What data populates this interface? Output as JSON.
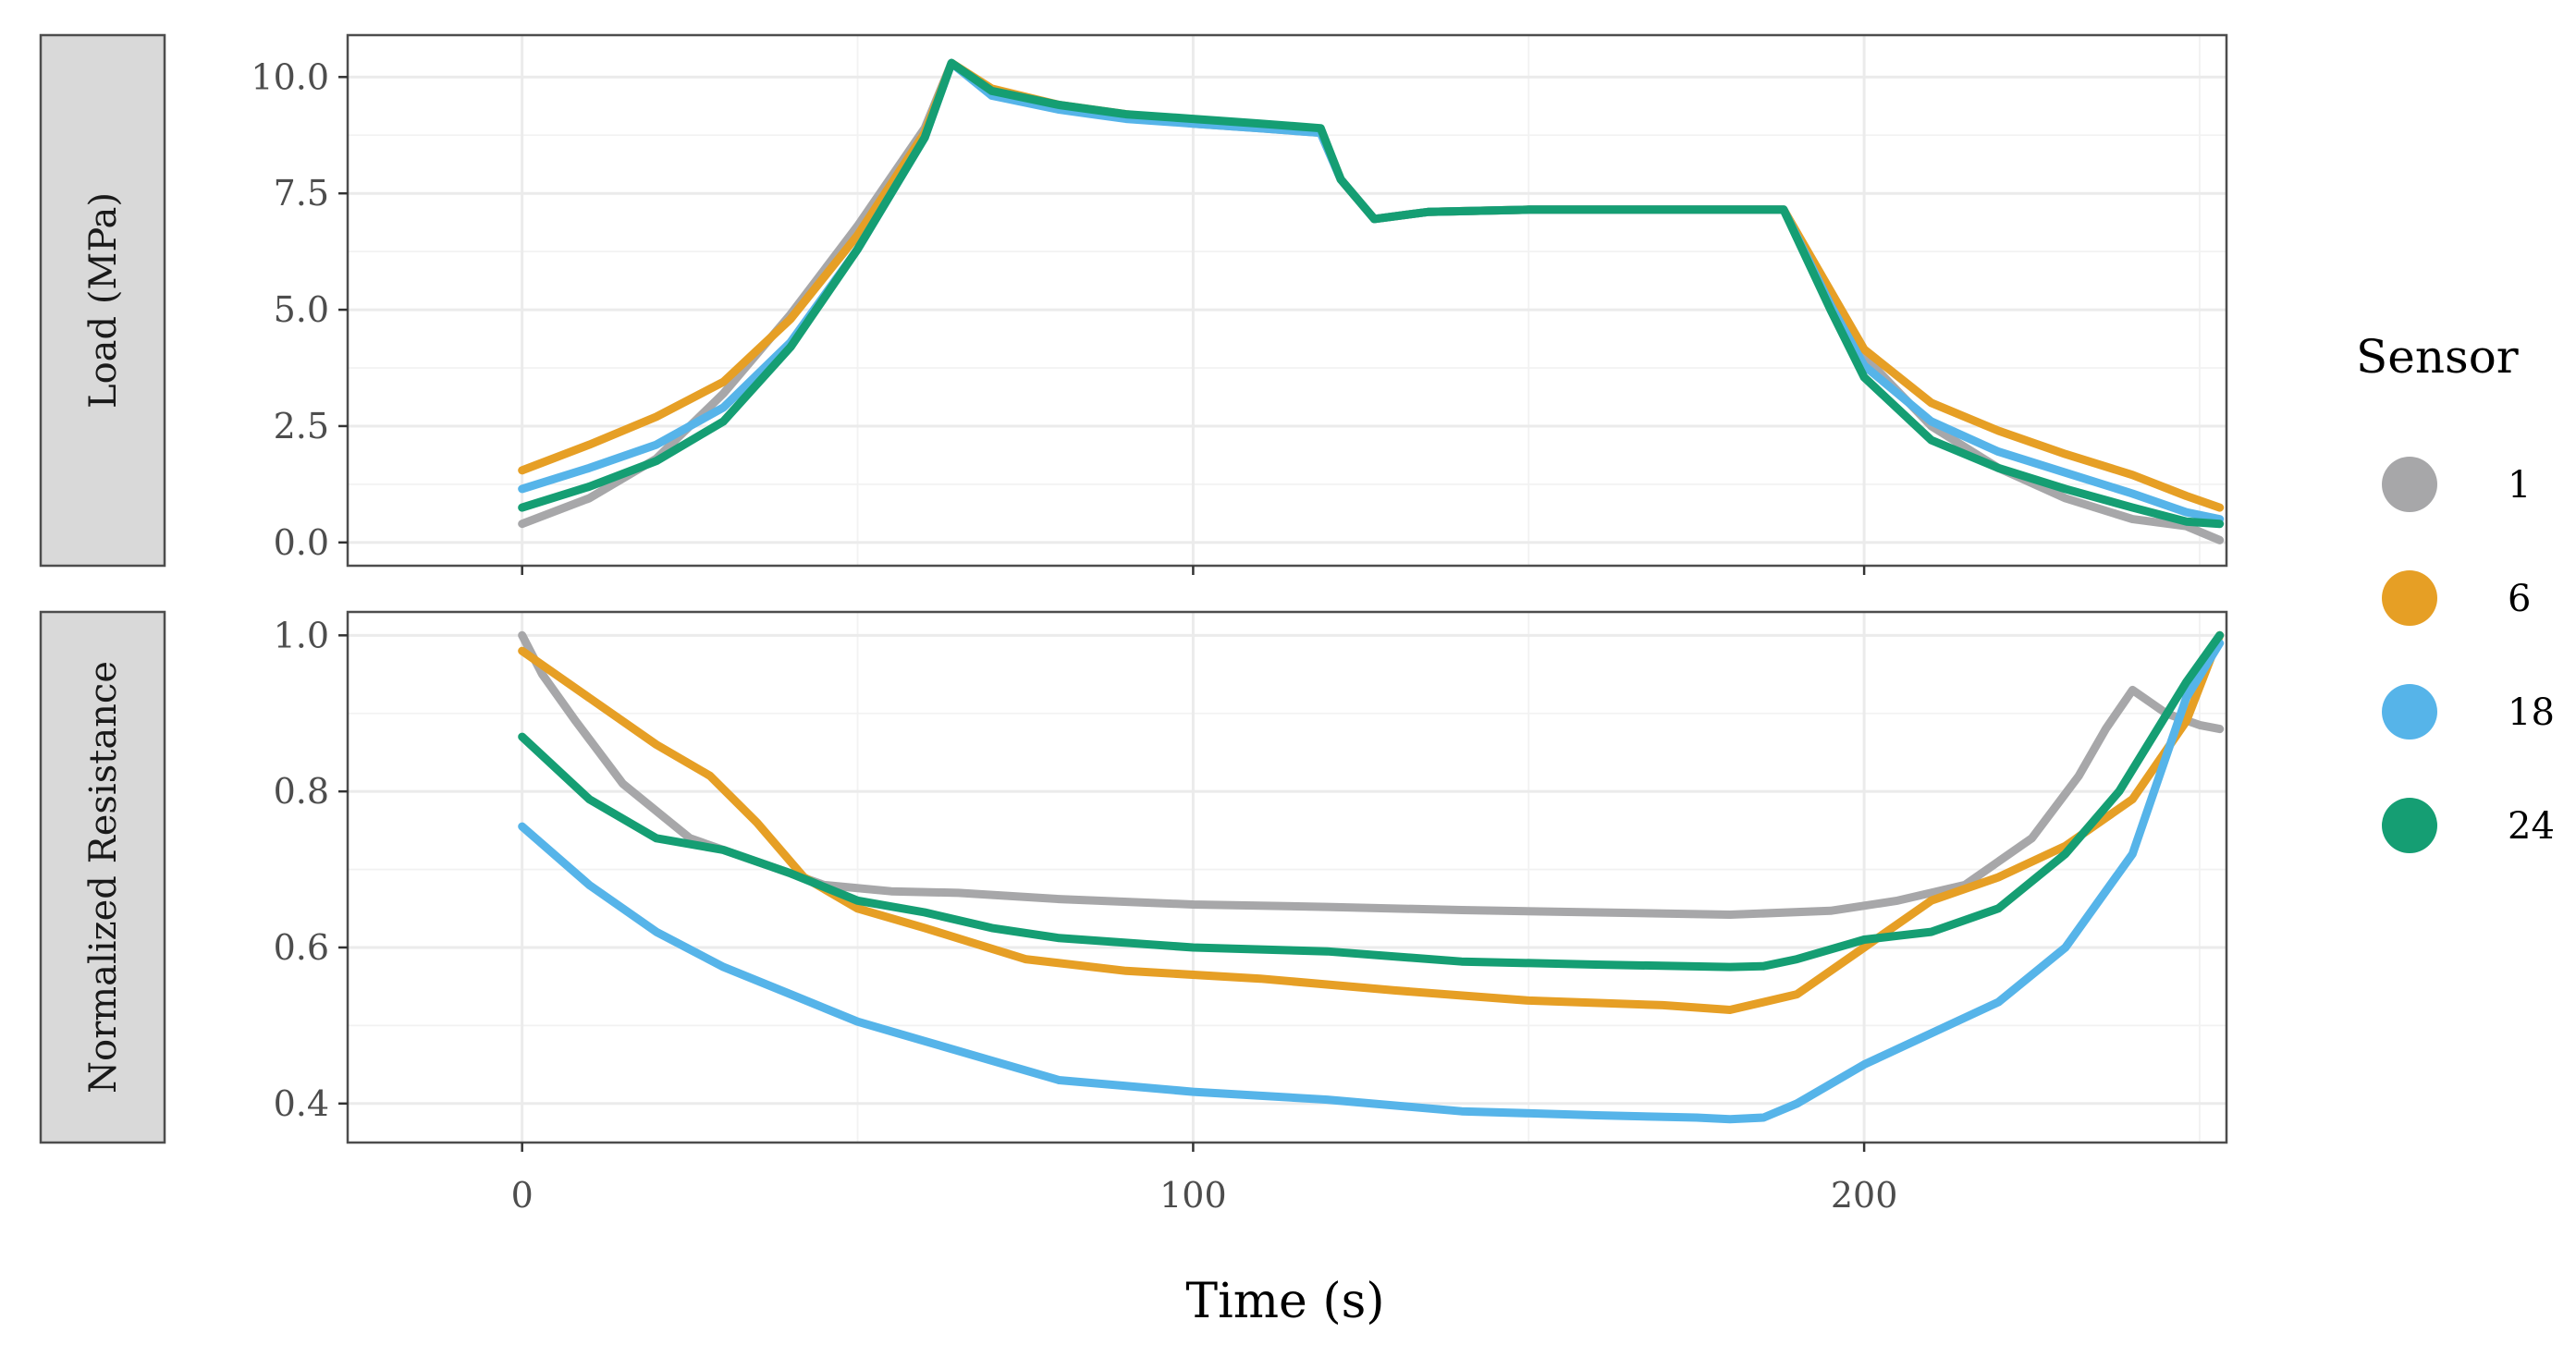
{
  "chart_data": {
    "type": "line",
    "xlabel": "Time (s)",
    "xlim": [
      -26,
      254
    ],
    "x_ticks": [
      0,
      100,
      200
    ],
    "x_tick_labels": [
      "0",
      "100",
      "200"
    ],
    "x_minor_ticks": [
      50,
      150,
      250
    ],
    "legend": {
      "title": "Sensor",
      "placement": "right",
      "entries": [
        {
          "name": "1",
          "color": "#a7a7a9"
        },
        {
          "name": "6",
          "color": "#e69f25"
        },
        {
          "name": "18",
          "color": "#56b4e9"
        },
        {
          "name": "24",
          "color": "#159e73"
        }
      ]
    },
    "panels": [
      {
        "strip_label": "Load (MPa)",
        "ylim": [
          -0.5,
          10.9
        ],
        "y_ticks": [
          0.0,
          2.5,
          5.0,
          7.5,
          10.0
        ],
        "y_tick_labels": [
          "0.0",
          "2.5",
          "5.0",
          "7.5",
          "10.0"
        ],
        "y_minor_ticks": [
          1.25,
          3.75,
          6.25,
          8.75
        ],
        "series": [
          {
            "name": "1",
            "x": [
              0,
              10,
              20,
              30,
              40,
              50,
              60,
              64,
              70,
              80,
              90,
              100,
              110,
              119,
              122,
              127,
              135,
              150,
              170,
              188,
              195,
              200,
              210,
              220,
              230,
              240,
              248,
              253
            ],
            "y": [
              0.4,
              0.95,
              1.8,
              3.2,
              4.9,
              6.8,
              8.9,
              10.3,
              9.7,
              9.35,
              9.15,
              9.0,
              8.9,
              8.8,
              7.8,
              6.95,
              7.1,
              7.15,
              7.15,
              7.15,
              5.3,
              4.0,
              2.5,
              1.6,
              0.95,
              0.5,
              0.35,
              0.05
            ]
          },
          {
            "name": "6",
            "x": [
              0,
              10,
              20,
              30,
              40,
              50,
              60,
              64,
              70,
              80,
              90,
              100,
              110,
              119,
              122,
              127,
              135,
              150,
              170,
              188,
              195,
              200,
              210,
              220,
              230,
              240,
              248,
              253
            ],
            "y": [
              1.55,
              2.1,
              2.7,
              3.45,
              4.8,
              6.6,
              8.8,
              10.3,
              9.75,
              9.4,
              9.2,
              9.05,
              8.95,
              8.85,
              7.8,
              6.95,
              7.1,
              7.15,
              7.15,
              7.15,
              5.4,
              4.15,
              3.0,
              2.4,
              1.9,
              1.45,
              1.0,
              0.75
            ]
          },
          {
            "name": "18",
            "x": [
              0,
              10,
              20,
              30,
              40,
              50,
              60,
              64,
              70,
              80,
              90,
              100,
              110,
              119,
              122,
              127,
              135,
              150,
              170,
              188,
              195,
              200,
              210,
              220,
              230,
              240,
              248,
              253
            ],
            "y": [
              1.15,
              1.6,
              2.1,
              2.9,
              4.3,
              6.3,
              8.7,
              10.3,
              9.6,
              9.3,
              9.1,
              9.0,
              8.9,
              8.8,
              7.8,
              6.95,
              7.1,
              7.15,
              7.15,
              7.15,
              5.1,
              3.8,
              2.6,
              1.95,
              1.5,
              1.05,
              0.65,
              0.5
            ]
          },
          {
            "name": "24",
            "x": [
              0,
              10,
              20,
              30,
              40,
              50,
              60,
              64,
              70,
              80,
              90,
              100,
              110,
              119,
              122,
              127,
              135,
              150,
              170,
              188,
              195,
              200,
              210,
              220,
              230,
              240,
              248,
              253
            ],
            "y": [
              0.75,
              1.2,
              1.75,
              2.6,
              4.2,
              6.3,
              8.7,
              10.3,
              9.7,
              9.4,
              9.2,
              9.1,
              9.0,
              8.9,
              7.8,
              6.95,
              7.1,
              7.15,
              7.15,
              7.15,
              5.0,
              3.55,
              2.2,
              1.6,
              1.15,
              0.75,
              0.45,
              0.4
            ]
          }
        ]
      },
      {
        "strip_label": "Normalized Resistance",
        "ylim": [
          0.35,
          1.03
        ],
        "y_ticks": [
          0.4,
          0.6,
          0.8,
          1.0
        ],
        "y_tick_labels": [
          "0.4",
          "0.6",
          "0.8",
          "1.0"
        ],
        "y_minor_ticks": [
          0.5,
          0.7,
          0.9
        ],
        "series": [
          {
            "name": "1",
            "x": [
              0,
              3,
              8,
              15,
              25,
              35,
              45,
              55,
              65,
              80,
              100,
              120,
              140,
              160,
              180,
              195,
              205,
              215,
              225,
              232,
              236,
              240,
              245,
              250,
              253
            ],
            "y": [
              1.0,
              0.95,
              0.89,
              0.81,
              0.74,
              0.71,
              0.68,
              0.672,
              0.67,
              0.662,
              0.655,
              0.652,
              0.648,
              0.645,
              0.642,
              0.647,
              0.66,
              0.68,
              0.74,
              0.82,
              0.88,
              0.93,
              0.9,
              0.885,
              0.88
            ]
          },
          {
            "name": "6",
            "x": [
              0,
              10,
              20,
              28,
              35,
              42,
              50,
              60,
              75,
              90,
              110,
              130,
              150,
              170,
              180,
              190,
              200,
              210,
              220,
              230,
              240,
              248,
              253
            ],
            "y": [
              0.98,
              0.92,
              0.86,
              0.82,
              0.76,
              0.69,
              0.65,
              0.625,
              0.585,
              0.57,
              0.56,
              0.545,
              0.532,
              0.526,
              0.52,
              0.54,
              0.6,
              0.66,
              0.69,
              0.73,
              0.79,
              0.89,
              1.0
            ]
          },
          {
            "name": "18",
            "x": [
              0,
              10,
              20,
              30,
              40,
              50,
              60,
              70,
              80,
              100,
              120,
              140,
              160,
              175,
              180,
              185,
              190,
              200,
              210,
              220,
              230,
              240,
              248,
              253
            ],
            "y": [
              0.755,
              0.68,
              0.62,
              0.575,
              0.54,
              0.505,
              0.48,
              0.455,
              0.43,
              0.415,
              0.405,
              0.39,
              0.385,
              0.382,
              0.38,
              0.382,
              0.4,
              0.45,
              0.49,
              0.53,
              0.6,
              0.72,
              0.92,
              0.99
            ]
          },
          {
            "name": "24",
            "x": [
              0,
              10,
              20,
              30,
              40,
              50,
              60,
              70,
              80,
              100,
              120,
              140,
              160,
              180,
              185,
              190,
              200,
              210,
              220,
              230,
              238,
              243,
              248,
              253
            ],
            "y": [
              0.87,
              0.79,
              0.74,
              0.725,
              0.695,
              0.66,
              0.645,
              0.625,
              0.612,
              0.6,
              0.595,
              0.582,
              0.578,
              0.575,
              0.576,
              0.585,
              0.61,
              0.62,
              0.65,
              0.72,
              0.8,
              0.87,
              0.94,
              1.0
            ]
          }
        ]
      }
    ]
  }
}
